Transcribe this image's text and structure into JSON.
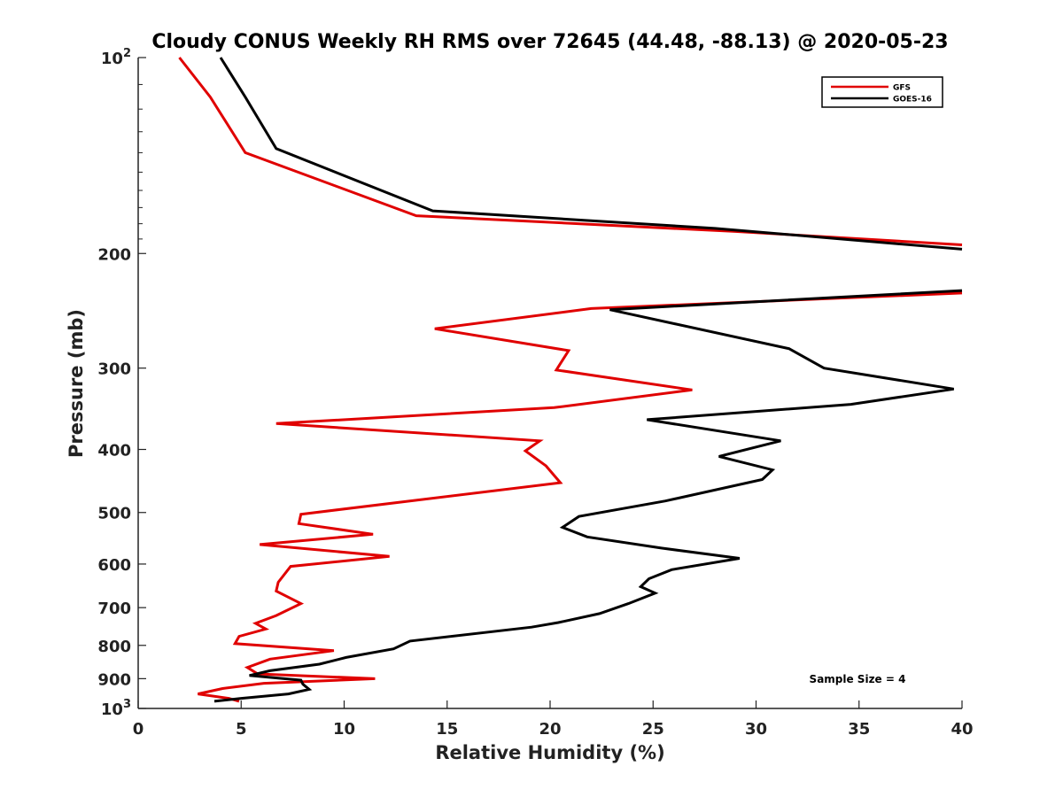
{
  "chart_data": {
    "type": "line",
    "title": "Cloudy CONUS Weekly RH RMS over 72645 (44.48, -88.13) @ 2020-05-23",
    "xlabel": "Relative Humidity (%)",
    "ylabel": "Pressure (mb)",
    "xlim": [
      0,
      40
    ],
    "ylim": [
      1000,
      100
    ],
    "y_scale": "log",
    "y_reversed": true,
    "grid": false,
    "legend_position": "top-right",
    "x_ticks": [
      "0",
      "5",
      "10",
      "15",
      "20",
      "25",
      "30",
      "35",
      "40"
    ],
    "y_ticks": [
      {
        "value": 100,
        "label": "10",
        "sup": "2"
      },
      {
        "value": 200,
        "label": "200",
        "sup": ""
      },
      {
        "value": 300,
        "label": "300",
        "sup": ""
      },
      {
        "value": 400,
        "label": "400",
        "sup": ""
      },
      {
        "value": 500,
        "label": "500",
        "sup": ""
      },
      {
        "value": 600,
        "label": "600",
        "sup": ""
      },
      {
        "value": 700,
        "label": "700",
        "sup": ""
      },
      {
        "value": 800,
        "label": "800",
        "sup": ""
      },
      {
        "value": 900,
        "label": "900",
        "sup": ""
      },
      {
        "value": 1000,
        "label": "10",
        "sup": "3"
      }
    ],
    "annotation": "Sample Size = 4",
    "series": [
      {
        "name": "GFS",
        "color": "#e00000",
        "points": [
          [
            2.0,
            100
          ],
          [
            3.5,
            115
          ],
          [
            5.2,
            140
          ],
          [
            13.5,
            175
          ],
          [
            29.0,
            185
          ],
          [
            40.0,
            194
          ],
          [
            null,
            null
          ],
          [
            40.0,
            230
          ],
          [
            22.0,
            243
          ],
          [
            14.4,
            261
          ],
          [
            20.9,
            282
          ],
          [
            20.3,
            302
          ],
          [
            26.9,
            324
          ],
          [
            20.2,
            345
          ],
          [
            6.7,
            365
          ],
          [
            19.5,
            388
          ],
          [
            18.8,
            402
          ],
          [
            19.8,
            424
          ],
          [
            20.5,
            450
          ],
          [
            7.9,
            503
          ],
          [
            7.8,
            520
          ],
          [
            11.4,
            540
          ],
          [
            5.9,
            560
          ],
          [
            12.2,
            584
          ],
          [
            7.4,
            605
          ],
          [
            6.8,
            640
          ],
          [
            6.7,
            660
          ],
          [
            7.9,
            690
          ],
          [
            6.7,
            720
          ],
          [
            5.7,
            740
          ],
          [
            6.2,
            755
          ],
          [
            4.9,
            775
          ],
          [
            4.7,
            795
          ],
          [
            9.5,
            815
          ],
          [
            6.4,
            840
          ],
          [
            5.3,
            865
          ],
          [
            5.8,
            885
          ],
          [
            11.5,
            900
          ],
          [
            6.1,
            915
          ],
          [
            4.1,
            932
          ],
          [
            2.9,
            950
          ],
          [
            4.4,
            965
          ],
          [
            4.9,
            975
          ]
        ]
      },
      {
        "name": "GOES-16",
        "color": "#000000",
        "points": [
          [
            4.0,
            100
          ],
          [
            5.2,
            115
          ],
          [
            6.7,
            138
          ],
          [
            14.3,
            172
          ],
          [
            28.0,
            183
          ],
          [
            40.0,
            197
          ],
          [
            null,
            null
          ],
          [
            40.0,
            228
          ],
          [
            22.9,
            244
          ],
          [
            31.6,
            280
          ],
          [
            33.3,
            300
          ],
          [
            39.6,
            323
          ],
          [
            34.6,
            341
          ],
          [
            24.7,
            360
          ],
          [
            31.2,
            388
          ],
          [
            28.2,
            410
          ],
          [
            30.8,
            430
          ],
          [
            30.3,
            445
          ],
          [
            25.6,
            480
          ],
          [
            21.4,
            507
          ],
          [
            20.6,
            527
          ],
          [
            21.8,
            545
          ],
          [
            25.4,
            567
          ],
          [
            29.2,
            588
          ],
          [
            25.9,
            612
          ],
          [
            24.8,
            632
          ],
          [
            24.4,
            650
          ],
          [
            25.1,
            665
          ],
          [
            23.8,
            690
          ],
          [
            22.4,
            715
          ],
          [
            20.4,
            738
          ],
          [
            19.1,
            750
          ],
          [
            13.2,
            788
          ],
          [
            12.4,
            810
          ],
          [
            10.1,
            835
          ],
          [
            8.8,
            855
          ],
          [
            6.4,
            875
          ],
          [
            5.4,
            890
          ],
          [
            7.9,
            905
          ],
          [
            8.0,
            918
          ],
          [
            8.3,
            935
          ],
          [
            7.3,
            950
          ],
          [
            5.0,
            965
          ],
          [
            3.7,
            975
          ]
        ]
      }
    ]
  }
}
